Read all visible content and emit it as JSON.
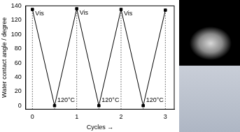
{
  "chart_data": {
    "type": "line",
    "x": [
      0,
      0.5,
      1,
      1.5,
      2,
      2.5,
      3
    ],
    "values": [
      135,
      0,
      136,
      0,
      135,
      0,
      134
    ],
    "color": "#000000",
    "marker": "square",
    "x_label": "Cycles →",
    "y_label": "Water contact angle / degree",
    "xlim": [
      -0.15,
      3.2
    ],
    "xticks": [
      0,
      1,
      2,
      3
    ],
    "ylim": [
      -5,
      140
    ],
    "yticks": [
      0,
      20,
      40,
      60,
      80,
      100,
      120,
      140
    ],
    "grid": false,
    "annotations": [
      {
        "text": "Vis",
        "x": 0,
        "y": 135
      },
      {
        "text": "120°C",
        "x": 0.5,
        "y": 0
      },
      {
        "text": "Vis",
        "x": 1,
        "y": 136
      },
      {
        "text": "120°C",
        "x": 1.5,
        "y": 0
      },
      {
        "text": "Vis",
        "x": 2,
        "y": 135
      },
      {
        "text": "120°C",
        "x": 2.5,
        "y": 0
      }
    ]
  }
}
